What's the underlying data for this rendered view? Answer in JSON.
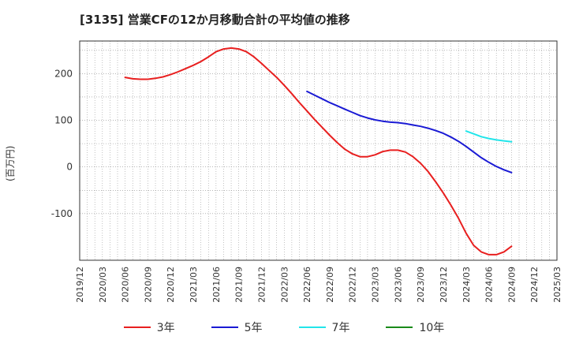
{
  "chart_title": "[3135]  営業CFの12か月移動合計の平均値の推移",
  "chart_data": {
    "type": "line",
    "title": "[3135]  営業CFの12か月移動合計の平均値の推移",
    "xlabel": "",
    "ylabel": "(百万円)",
    "ylim": [
      -200,
      270
    ],
    "yticks": [
      -100,
      0,
      100,
      200
    ],
    "grid": true,
    "legend_position": "bottom",
    "x_ticks": [
      "2019/12",
      "2020/03",
      "2020/06",
      "2020/09",
      "2020/12",
      "2021/03",
      "2021/06",
      "2021/09",
      "2021/12",
      "2022/03",
      "2022/06",
      "2022/09",
      "2022/12",
      "2023/03",
      "2023/06",
      "2023/09",
      "2023/12",
      "2024/03",
      "2024/06",
      "2024/09",
      "2024/12",
      "2025/03"
    ],
    "series": [
      {
        "name": "3年",
        "color": "#e81f1f",
        "points": [
          [
            "2020/06",
            192
          ],
          [
            "2020/07",
            189
          ],
          [
            "2020/08",
            188
          ],
          [
            "2020/09",
            188
          ],
          [
            "2020/10",
            190
          ],
          [
            "2020/11",
            193
          ],
          [
            "2020/12",
            198
          ],
          [
            "2021/01",
            204
          ],
          [
            "2021/02",
            211
          ],
          [
            "2021/03",
            218
          ],
          [
            "2021/04",
            226
          ],
          [
            "2021/05",
            236
          ],
          [
            "2021/06",
            247
          ],
          [
            "2021/07",
            253
          ],
          [
            "2021/08",
            255
          ],
          [
            "2021/09",
            253
          ],
          [
            "2021/10",
            247
          ],
          [
            "2021/11",
            236
          ],
          [
            "2021/12",
            222
          ],
          [
            "2022/01",
            207
          ],
          [
            "2022/02",
            192
          ],
          [
            "2022/03",
            175
          ],
          [
            "2022/04",
            157
          ],
          [
            "2022/05",
            138
          ],
          [
            "2022/06",
            120
          ],
          [
            "2022/07",
            102
          ],
          [
            "2022/08",
            85
          ],
          [
            "2022/09",
            68
          ],
          [
            "2022/10",
            52
          ],
          [
            "2022/11",
            38
          ],
          [
            "2022/12",
            28
          ],
          [
            "2023/01",
            22
          ],
          [
            "2023/02",
            22
          ],
          [
            "2023/03",
            26
          ],
          [
            "2023/04",
            33
          ],
          [
            "2023/05",
            36
          ],
          [
            "2023/06",
            36
          ],
          [
            "2023/07",
            32
          ],
          [
            "2023/08",
            22
          ],
          [
            "2023/09",
            8
          ],
          [
            "2023/10",
            -10
          ],
          [
            "2023/11",
            -32
          ],
          [
            "2023/12",
            -56
          ],
          [
            "2024/01",
            -82
          ],
          [
            "2024/02",
            -110
          ],
          [
            "2024/03",
            -142
          ],
          [
            "2024/04",
            -168
          ],
          [
            "2024/05",
            -182
          ],
          [
            "2024/06",
            -188
          ],
          [
            "2024/07",
            -188
          ],
          [
            "2024/08",
            -182
          ],
          [
            "2024/09",
            -170
          ]
        ]
      },
      {
        "name": "5年",
        "color": "#1a1ad4",
        "points": [
          [
            "2022/06",
            162
          ],
          [
            "2022/07",
            154
          ],
          [
            "2022/08",
            146
          ],
          [
            "2022/09",
            138
          ],
          [
            "2022/10",
            131
          ],
          [
            "2022/11",
            124
          ],
          [
            "2022/12",
            117
          ],
          [
            "2023/01",
            110
          ],
          [
            "2023/02",
            105
          ],
          [
            "2023/03",
            101
          ],
          [
            "2023/04",
            98
          ],
          [
            "2023/05",
            96
          ],
          [
            "2023/06",
            95
          ],
          [
            "2023/07",
            93
          ],
          [
            "2023/08",
            90
          ],
          [
            "2023/09",
            87
          ],
          [
            "2023/10",
            83
          ],
          [
            "2023/11",
            78
          ],
          [
            "2023/12",
            72
          ],
          [
            "2024/01",
            64
          ],
          [
            "2024/02",
            55
          ],
          [
            "2024/03",
            44
          ],
          [
            "2024/04",
            32
          ],
          [
            "2024/05",
            20
          ],
          [
            "2024/06",
            10
          ],
          [
            "2024/07",
            1
          ],
          [
            "2024/08",
            -6
          ],
          [
            "2024/09",
            -12
          ]
        ]
      },
      {
        "name": "7年",
        "color": "#22e5ea",
        "points": [
          [
            "2024/03",
            77
          ],
          [
            "2024/04",
            71
          ],
          [
            "2024/05",
            65
          ],
          [
            "2024/06",
            61
          ],
          [
            "2024/07",
            58
          ],
          [
            "2024/08",
            56
          ],
          [
            "2024/09",
            54
          ]
        ]
      },
      {
        "name": "10年",
        "color": "#1a8a1a",
        "points": []
      }
    ]
  }
}
